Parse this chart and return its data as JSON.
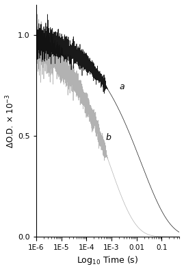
{
  "xlabel": "Log$_{10}$ Time (s)",
  "ylabel": "ΔO.D. × 10$^{-3}$",
  "ylim": [
    0.0,
    1.15
  ],
  "yticks": [
    0.0,
    0.5,
    1.0
  ],
  "ytick_labels": [
    "0.0",
    "0.5",
    "1.0"
  ],
  "label_a": "a",
  "label_b": "b",
  "curve_a_color": "#000000",
  "curve_b_color": "#aaaaaa",
  "background_color": "#ffffff",
  "figsize": [
    2.69,
    3.95
  ],
  "dpi": 100,
  "noise_amplitude": 0.06,
  "noise_cutoff_time": 0.0005,
  "curve_a_tau": 0.015,
  "curve_a_beta": 0.38,
  "curve_b_tau": 0.0008,
  "curve_b_beta": 0.42
}
